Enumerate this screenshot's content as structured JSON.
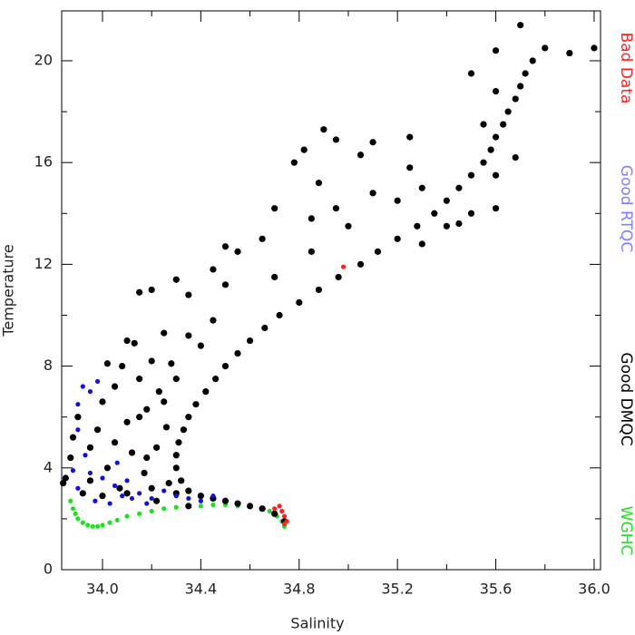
{
  "chart_data": {
    "type": "scatter",
    "x_label": "Salinity",
    "y_label": "Temperature",
    "xlim": [
      33.834,
      36.026
    ],
    "ylim": [
      0,
      21.96
    ],
    "xticks": [
      {
        "value": 34.0,
        "label": "34.0"
      },
      34.4,
      34.8,
      35.2,
      35.6,
      {
        "value": 36.0,
        "label": "36.0"
      }
    ],
    "x_minor_ticks": [
      34.2,
      34.6,
      35.0,
      35.4,
      35.8
    ],
    "yticks": [
      0,
      4,
      8,
      12,
      16,
      20
    ],
    "y_minor_ticks": [
      2,
      6,
      10,
      14,
      18
    ],
    "series": [
      {
        "name": "Bad Data",
        "color": "#ff2020",
        "x": [
          34.72,
          34.73,
          34.74,
          34.75,
          34.74,
          34.7,
          34.98
        ],
        "values": [
          2.5,
          2.3,
          2.1,
          1.9,
          1.8,
          2.4,
          11.9
        ]
      },
      {
        "name": "Good RTQC",
        "color": "#1010e0",
        "x": [
          33.9,
          33.92,
          33.95,
          33.98,
          33.9,
          33.93,
          33.95,
          33.9,
          34.0,
          34.05,
          34.08,
          34.1,
          34.12,
          34.15,
          34.2,
          34.25,
          34.3,
          34.35,
          34.4,
          34.45,
          33.97,
          34.03,
          34.18,
          34.06,
          33.88
        ],
        "values": [
          6.5,
          7.2,
          7.0,
          7.4,
          5.5,
          4.5,
          3.8,
          3.2,
          3.6,
          3.3,
          2.9,
          3.5,
          2.8,
          3.0,
          2.8,
          3.1,
          2.9,
          2.8,
          2.7,
          2.9,
          2.7,
          2.6,
          2.6,
          4.2,
          3.9
        ]
      },
      {
        "name": "Good DMQC",
        "color": "#000000",
        "x": [
          34.74,
          34.7,
          34.65,
          34.6,
          34.55,
          34.5,
          34.45,
          34.4,
          34.35,
          34.32,
          34.3,
          34.3,
          34.31,
          34.33,
          34.35,
          34.38,
          34.42,
          34.46,
          34.5,
          34.55,
          34.6,
          34.66,
          34.72,
          34.8,
          34.88,
          34.96,
          35.05,
          35.12,
          35.2,
          35.28,
          35.35,
          35.4,
          35.45,
          35.5,
          35.55,
          35.58,
          35.6,
          35.63,
          35.65,
          35.68,
          35.7,
          35.72,
          35.75,
          35.8,
          35.9,
          36.0,
          35.7,
          35.6,
          35.5,
          35.3,
          35.2,
          35.0,
          34.85,
          34.7,
          35.4,
          35.5,
          35.3,
          35.6,
          35.6,
          35.45,
          35.1,
          34.95,
          35.25,
          35.6,
          35.55,
          35.68,
          34.78,
          34.82,
          34.9,
          34.95,
          35.05,
          35.1,
          34.88,
          34.7,
          34.65,
          34.55,
          34.5,
          34.45,
          34.3,
          34.2,
          34.15,
          34.35,
          34.5,
          35.25,
          34.85,
          33.85,
          33.87,
          33.88,
          33.9,
          33.92,
          33.95,
          33.98,
          34.0,
          34.02,
          34.05,
          34.07,
          34.08,
          34.1,
          34.12,
          34.13,
          34.15,
          34.17,
          34.18,
          34.2,
          34.22,
          34.23,
          34.25,
          34.26,
          34.27,
          34.28,
          34.2,
          34.1,
          34.0,
          33.95,
          34.05,
          34.15,
          34.25,
          34.3,
          34.35,
          34.4,
          34.45,
          34.1,
          34.02,
          34.18,
          34.3,
          34.22,
          34.35,
          33.84
        ],
        "values": [
          1.9,
          2.2,
          2.4,
          2.5,
          2.6,
          2.7,
          2.8,
          2.9,
          3.1,
          3.5,
          4.0,
          4.5,
          5.0,
          5.5,
          6.0,
          6.5,
          7.0,
          7.5,
          8.0,
          8.5,
          9.0,
          9.5,
          10.0,
          10.5,
          11.0,
          11.5,
          12.0,
          12.5,
          13.0,
          13.5,
          14.0,
          14.5,
          15.0,
          15.5,
          16.0,
          16.5,
          17.0,
          17.5,
          18.0,
          18.5,
          19.0,
          19.5,
          20.0,
          20.5,
          20.3,
          20.5,
          21.4,
          20.4,
          19.5,
          15.0,
          14.5,
          13.5,
          12.5,
          11.5,
          13.5,
          14.0,
          12.8,
          15.5,
          14.2,
          13.6,
          14.8,
          14.2,
          15.8,
          18.8,
          17.5,
          16.2,
          16.0,
          16.5,
          17.3,
          16.9,
          16.3,
          16.8,
          15.2,
          14.2,
          13.0,
          12.5,
          12.7,
          11.8,
          11.4,
          11.0,
          10.9,
          10.8,
          11.2,
          17.0,
          13.8,
          3.6,
          4.4,
          5.2,
          6.0,
          3.0,
          4.8,
          5.5,
          6.6,
          4.0,
          7.2,
          3.2,
          8.0,
          5.8,
          4.6,
          8.9,
          7.5,
          3.8,
          6.3,
          8.2,
          4.8,
          7.0,
          9.3,
          5.6,
          3.4,
          8.1,
          3.2,
          3.0,
          2.9,
          3.5,
          5.0,
          6.0,
          6.6,
          7.5,
          9.2,
          8.8,
          9.8,
          9.0,
          8.1,
          4.4,
          3.0,
          2.7,
          2.5,
          3.4
        ]
      },
      {
        "name": "WGHC",
        "color": "#20e020",
        "x": [
          33.87,
          33.88,
          33.89,
          33.9,
          33.92,
          33.94,
          33.96,
          33.98,
          34.0,
          34.03,
          34.06,
          34.1,
          34.15,
          34.2,
          34.25,
          34.3,
          34.35,
          34.4,
          34.45,
          34.5,
          34.55,
          34.6,
          34.65,
          34.68,
          34.71,
          34.73,
          34.74
        ],
        "values": [
          2.7,
          2.4,
          2.2,
          2.0,
          1.85,
          1.75,
          1.7,
          1.7,
          1.75,
          1.85,
          1.95,
          2.1,
          2.2,
          2.3,
          2.4,
          2.45,
          2.5,
          2.5,
          2.55,
          2.55,
          2.5,
          2.5,
          2.4,
          2.3,
          2.1,
          1.9,
          1.7
        ]
      }
    ]
  }
}
